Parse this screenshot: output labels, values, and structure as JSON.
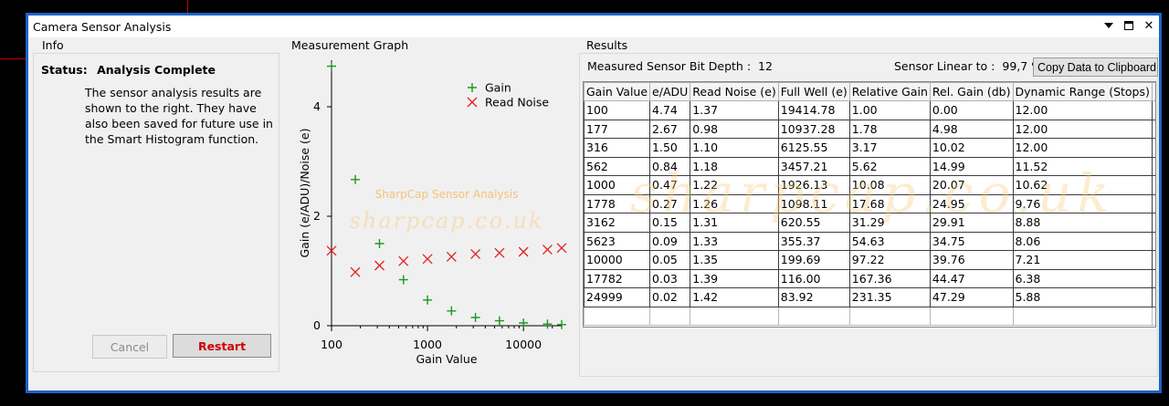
{
  "window": {
    "title": "Camera Sensor Analysis"
  },
  "info": {
    "title": "Info",
    "status_label": "Status:",
    "status_value": "Analysis Complete",
    "message": "The sensor analysis results are shown to the right. They have also been saved for future use in the Smart Histogram function.",
    "cancel_label": "Cancel",
    "restart_label": "Restart"
  },
  "graph": {
    "title": "Measurement Graph",
    "watermark_text": "SharpCap Sensor Analysis",
    "watermark_logo": "sharpcap.co.uk"
  },
  "chart_data": {
    "type": "scatter",
    "xscale": "log",
    "xlabel": "Gain Value",
    "ylabel": "Gain (e/ADU)/Noise (e)",
    "xlim": [
      100,
      24999
    ],
    "ylim": [
      0,
      4.85
    ],
    "xticks": [
      "100",
      "1000",
      "10000"
    ],
    "yticks": [
      "0",
      "2",
      "4"
    ],
    "legend_position": "top-right",
    "series": [
      {
        "name": "Gain",
        "marker": "+",
        "color": "#1a9a1a",
        "x": [
          100,
          177,
          316,
          562,
          1000,
          1778,
          3162,
          5623,
          10000,
          17782,
          24999
        ],
        "y": [
          4.74,
          2.67,
          1.5,
          0.84,
          0.47,
          0.27,
          0.15,
          0.09,
          0.05,
          0.03,
          0.02
        ]
      },
      {
        "name": "Read Noise",
        "marker": "x",
        "color": "#e02020",
        "x": [
          100,
          177,
          316,
          562,
          1000,
          1778,
          3162,
          5623,
          10000,
          17782,
          24999
        ],
        "y": [
          1.37,
          0.98,
          1.1,
          1.18,
          1.22,
          1.26,
          1.31,
          1.33,
          1.35,
          1.39,
          1.42
        ]
      }
    ]
  },
  "results": {
    "title": "Results",
    "bit_depth_label": "Measured Sensor Bit Depth :",
    "bit_depth_value": "12",
    "linear_label": "Sensor Linear to :",
    "linear_value": "99,7 %",
    "copy_label": "Copy Data to Clipboard",
    "columns": [
      "Gain Value",
      "e/ADU",
      "Read Noise (e)",
      "Full Well (e)",
      "Relative Gain",
      "Rel. Gain (db)",
      "Dynamic Range (Stops)",
      ""
    ],
    "rows": [
      [
        "100",
        "4.74",
        "1.37",
        "19414.78",
        "1.00",
        "0.00",
        "12.00"
      ],
      [
        "177",
        "2.67",
        "0.98",
        "10937.28",
        "1.78",
        "4.98",
        "12.00"
      ],
      [
        "316",
        "1.50",
        "1.10",
        "6125.55",
        "3.17",
        "10.02",
        "12.00"
      ],
      [
        "562",
        "0.84",
        "1.18",
        "3457.21",
        "5.62",
        "14.99",
        "11.52"
      ],
      [
        "1000",
        "0.47",
        "1.22",
        "1926.13",
        "10.08",
        "20.07",
        "10.62"
      ],
      [
        "1778",
        "0.27",
        "1.26",
        "1098.11",
        "17.68",
        "24.95",
        "9.76"
      ],
      [
        "3162",
        "0.15",
        "1.31",
        "620.55",
        "31.29",
        "29.91",
        "8.88"
      ],
      [
        "5623",
        "0.09",
        "1.33",
        "355.37",
        "54.63",
        "34.75",
        "8.06"
      ],
      [
        "10000",
        "0.05",
        "1.35",
        "199.69",
        "97.22",
        "39.76",
        "7.21"
      ],
      [
        "17782",
        "0.03",
        "1.39",
        "116.00",
        "167.36",
        "44.47",
        "6.38"
      ],
      [
        "24999",
        "0.02",
        "1.42",
        "83.92",
        "231.35",
        "47.29",
        "5.88"
      ]
    ],
    "watermark_logo": "sharpcap.co.uk"
  }
}
